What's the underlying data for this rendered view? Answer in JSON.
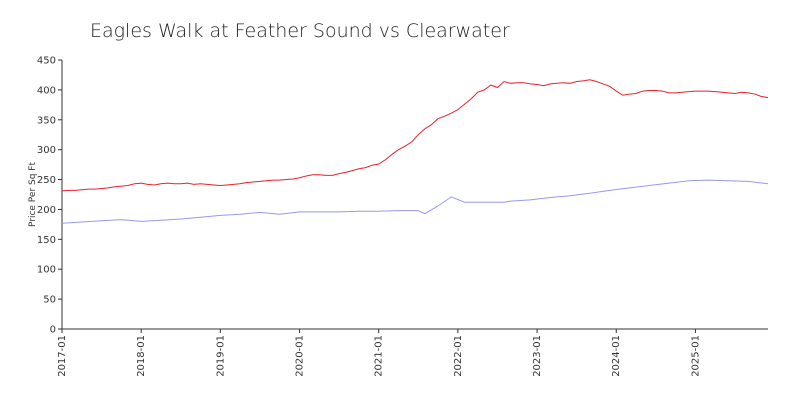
{
  "chart_data": {
    "type": "line",
    "title": "Eagles Walk at Feather Sound vs Clearwater",
    "ylabel": "Price Per Sq Ft",
    "xlabel": "",
    "ylim": [
      0,
      450
    ],
    "xlim": [
      "2017-01",
      "2025-12"
    ],
    "yticks": [
      0,
      50,
      100,
      150,
      200,
      250,
      300,
      350,
      400,
      450
    ],
    "xticks": [
      "2017-01",
      "2018-01",
      "2019-01",
      "2020-01",
      "2021-01",
      "2022-01",
      "2023-01",
      "2024-01",
      "2025-01"
    ],
    "grid": false,
    "series": [
      {
        "color": "#e8222b",
        "points": [
          [
            "2017-01",
            231
          ],
          [
            "2017-02",
            232
          ],
          [
            "2017-03",
            232
          ],
          [
            "2017-04",
            233
          ],
          [
            "2017-05",
            234
          ],
          [
            "2017-06",
            234
          ],
          [
            "2017-07",
            235
          ],
          [
            "2017-08",
            236
          ],
          [
            "2017-09",
            238
          ],
          [
            "2017-10",
            239
          ],
          [
            "2017-11",
            240
          ],
          [
            "2017-12",
            243
          ],
          [
            "2018-01",
            244
          ],
          [
            "2018-02",
            242
          ],
          [
            "2018-03",
            241
          ],
          [
            "2018-04",
            243
          ],
          [
            "2018-05",
            244
          ],
          [
            "2018-06",
            243
          ],
          [
            "2018-07",
            243
          ],
          [
            "2018-08",
            244
          ],
          [
            "2018-09",
            242
          ],
          [
            "2018-10",
            243
          ],
          [
            "2018-11",
            242
          ],
          [
            "2018-12",
            241
          ],
          [
            "2019-01",
            240
          ],
          [
            "2019-02",
            241
          ],
          [
            "2019-03",
            242
          ],
          [
            "2019-04",
            243
          ],
          [
            "2019-05",
            245
          ],
          [
            "2019-06",
            246
          ],
          [
            "2019-07",
            247
          ],
          [
            "2019-08",
            248
          ],
          [
            "2019-09",
            249
          ],
          [
            "2019-10",
            249
          ],
          [
            "2019-11",
            250
          ],
          [
            "2019-12",
            251
          ],
          [
            "2020-01",
            253
          ],
          [
            "2020-02",
            256
          ],
          [
            "2020-03",
            258
          ],
          [
            "2020-04",
            258
          ],
          [
            "2020-05",
            257
          ],
          [
            "2020-06",
            257
          ],
          [
            "2020-07",
            260
          ],
          [
            "2020-08",
            262
          ],
          [
            "2020-09",
            265
          ],
          [
            "2020-10",
            268
          ],
          [
            "2020-11",
            270
          ],
          [
            "2020-12",
            274
          ],
          [
            "2021-01",
            276
          ],
          [
            "2021-02",
            283
          ],
          [
            "2021-03",
            292
          ],
          [
            "2021-04",
            300
          ],
          [
            "2021-05",
            306
          ],
          [
            "2021-06",
            313
          ],
          [
            "2021-07",
            325
          ],
          [
            "2021-08",
            335
          ],
          [
            "2021-09",
            342
          ],
          [
            "2021-10",
            352
          ],
          [
            "2021-11",
            356
          ],
          [
            "2021-12",
            361
          ],
          [
            "2022-01",
            367
          ],
          [
            "2022-02",
            376
          ],
          [
            "2022-03",
            385
          ],
          [
            "2022-04",
            396
          ],
          [
            "2022-05",
            400
          ],
          [
            "2022-06",
            408
          ],
          [
            "2022-07",
            404
          ],
          [
            "2022-08",
            414
          ],
          [
            "2022-09",
            411
          ],
          [
            "2022-10",
            412
          ],
          [
            "2022-11",
            412
          ],
          [
            "2022-12",
            410
          ],
          [
            "2023-01",
            409
          ],
          [
            "2023-02",
            407
          ],
          [
            "2023-03",
            410
          ],
          [
            "2023-04",
            411
          ],
          [
            "2023-05",
            412
          ],
          [
            "2023-06",
            411
          ],
          [
            "2023-07",
            414
          ],
          [
            "2023-08",
            415
          ],
          [
            "2023-09",
            417
          ],
          [
            "2023-10",
            414
          ],
          [
            "2023-11",
            410
          ],
          [
            "2023-12",
            406
          ],
          [
            "2024-01",
            398
          ],
          [
            "2024-02",
            391
          ],
          [
            "2024-03",
            393
          ],
          [
            "2024-04",
            394
          ],
          [
            "2024-05",
            398
          ],
          [
            "2024-06",
            399
          ],
          [
            "2024-07",
            399
          ],
          [
            "2024-08",
            398
          ],
          [
            "2024-09",
            395
          ],
          [
            "2024-10",
            395
          ],
          [
            "2024-11",
            396
          ],
          [
            "2024-12",
            397
          ],
          [
            "2025-01",
            398
          ],
          [
            "2025-02",
            398
          ],
          [
            "2025-03",
            398
          ],
          [
            "2025-04",
            397
          ],
          [
            "2025-05",
            396
          ],
          [
            "2025-06",
            395
          ],
          [
            "2025-07",
            394
          ],
          [
            "2025-08",
            396
          ],
          [
            "2025-09",
            395
          ],
          [
            "2025-10",
            393
          ],
          [
            "2025-11",
            389
          ],
          [
            "2025-12",
            387
          ]
        ]
      },
      {
        "color": "#9898ee",
        "points": [
          [
            "2017-01",
            177
          ],
          [
            "2017-04",
            179
          ],
          [
            "2017-07",
            181
          ],
          [
            "2017-10",
            183
          ],
          [
            "2018-01",
            180
          ],
          [
            "2018-04",
            182
          ],
          [
            "2018-07",
            184
          ],
          [
            "2018-10",
            187
          ],
          [
            "2019-01",
            190
          ],
          [
            "2019-04",
            192
          ],
          [
            "2019-07",
            195
          ],
          [
            "2019-10",
            192
          ],
          [
            "2020-01",
            196
          ],
          [
            "2020-04",
            196
          ],
          [
            "2020-07",
            196
          ],
          [
            "2020-10",
            197
          ],
          [
            "2021-01",
            197
          ],
          [
            "2021-04",
            198
          ],
          [
            "2021-07",
            198
          ],
          [
            "2021-08",
            193
          ],
          [
            "2021-10",
            206
          ],
          [
            "2021-12",
            221
          ],
          [
            "2022-02",
            212
          ],
          [
            "2022-05",
            212
          ],
          [
            "2022-08",
            212
          ],
          [
            "2022-09",
            214
          ],
          [
            "2022-12",
            216
          ],
          [
            "2023-03",
            220
          ],
          [
            "2023-06",
            223
          ],
          [
            "2023-09",
            227
          ],
          [
            "2023-12",
            232
          ],
          [
            "2024-03",
            236
          ],
          [
            "2024-06",
            240
          ],
          [
            "2024-09",
            244
          ],
          [
            "2024-12",
            248
          ],
          [
            "2025-03",
            249
          ],
          [
            "2025-06",
            248
          ],
          [
            "2025-09",
            247
          ],
          [
            "2025-12",
            243
          ]
        ]
      }
    ]
  }
}
